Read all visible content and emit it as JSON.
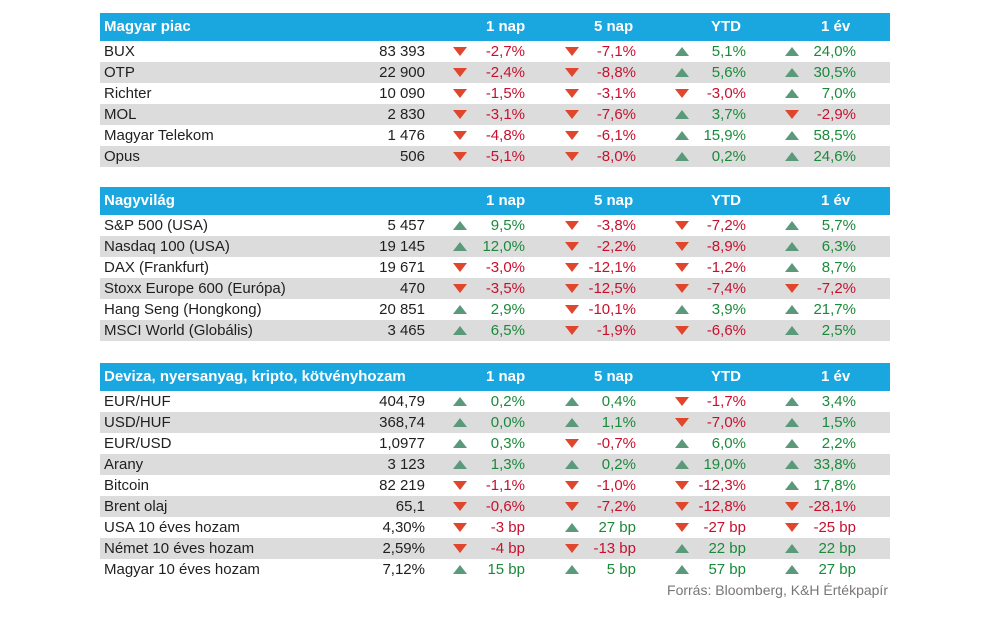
{
  "colors": {
    "header_bg": "#1aa7e0",
    "row_shade": "#dcdcdc",
    "up_arrow": "#5a9a7a",
    "down_arrow": "#e0462b",
    "positive_text": "#1a8a3a",
    "negative_text": "#c8102e"
  },
  "columns": [
    "1 nap",
    "5 nap",
    "YTD",
    "1 év"
  ],
  "sections": [
    {
      "title": "Magyar piac",
      "rows": [
        {
          "name": "BUX",
          "value": "83 393",
          "cells": [
            {
              "t": "-2,7%",
              "d": "down"
            },
            {
              "t": "-7,1%",
              "d": "down"
            },
            {
              "t": "5,1%",
              "d": "up"
            },
            {
              "t": "24,0%",
              "d": "up"
            }
          ]
        },
        {
          "name": "OTP",
          "value": "22 900",
          "cells": [
            {
              "t": "-2,4%",
              "d": "down"
            },
            {
              "t": "-8,8%",
              "d": "down"
            },
            {
              "t": "5,6%",
              "d": "up"
            },
            {
              "t": "30,5%",
              "d": "up"
            }
          ]
        },
        {
          "name": "Richter",
          "value": "10 090",
          "cells": [
            {
              "t": "-1,5%",
              "d": "down"
            },
            {
              "t": "-3,1%",
              "d": "down"
            },
            {
              "t": "-3,0%",
              "d": "down"
            },
            {
              "t": "7,0%",
              "d": "up"
            }
          ]
        },
        {
          "name": "MOL",
          "value": "2 830",
          "cells": [
            {
              "t": "-3,1%",
              "d": "down"
            },
            {
              "t": "-7,6%",
              "d": "down"
            },
            {
              "t": "3,7%",
              "d": "up"
            },
            {
              "t": "-2,9%",
              "d": "down"
            }
          ]
        },
        {
          "name": "Magyar Telekom",
          "value": "1 476",
          "cells": [
            {
              "t": "-4,8%",
              "d": "down"
            },
            {
              "t": "-6,1%",
              "d": "down"
            },
            {
              "t": "15,9%",
              "d": "up"
            },
            {
              "t": "58,5%",
              "d": "up"
            }
          ]
        },
        {
          "name": "Opus",
          "value": "506",
          "cells": [
            {
              "t": "-5,1%",
              "d": "down"
            },
            {
              "t": "-8,0%",
              "d": "down"
            },
            {
              "t": "0,2%",
              "d": "up"
            },
            {
              "t": "24,6%",
              "d": "up"
            }
          ]
        }
      ]
    },
    {
      "title": "Nagyvilág",
      "rows": [
        {
          "name": "S&P 500 (USA)",
          "value": "5 457",
          "cells": [
            {
              "t": "9,5%",
              "d": "up"
            },
            {
              "t": "-3,8%",
              "d": "down"
            },
            {
              "t": "-7,2%",
              "d": "down"
            },
            {
              "t": "5,7%",
              "d": "up"
            }
          ]
        },
        {
          "name": "Nasdaq 100 (USA)",
          "value": "19 145",
          "cells": [
            {
              "t": "12,0%",
              "d": "up"
            },
            {
              "t": "-2,2%",
              "d": "down"
            },
            {
              "t": "-8,9%",
              "d": "down"
            },
            {
              "t": "6,3%",
              "d": "up"
            }
          ]
        },
        {
          "name": "DAX (Frankfurt)",
          "value": "19 671",
          "cells": [
            {
              "t": "-3,0%",
              "d": "down"
            },
            {
              "t": "-12,1%",
              "d": "down"
            },
            {
              "t": "-1,2%",
              "d": "down"
            },
            {
              "t": "8,7%",
              "d": "up"
            }
          ]
        },
        {
          "name": "Stoxx Europe 600 (Európa)",
          "value": "470",
          "cells": [
            {
              "t": "-3,5%",
              "d": "down"
            },
            {
              "t": "-12,5%",
              "d": "down"
            },
            {
              "t": "-7,4%",
              "d": "down"
            },
            {
              "t": "-7,2%",
              "d": "down"
            }
          ]
        },
        {
          "name": "Hang Seng (Hongkong)",
          "value": "20 851",
          "cells": [
            {
              "t": "2,9%",
              "d": "up"
            },
            {
              "t": "-10,1%",
              "d": "down"
            },
            {
              "t": "3,9%",
              "d": "up"
            },
            {
              "t": "21,7%",
              "d": "up"
            }
          ]
        },
        {
          "name": "MSCI World (Globális)",
          "value": "3 465",
          "cells": [
            {
              "t": "6,5%",
              "d": "up"
            },
            {
              "t": "-1,9%",
              "d": "down"
            },
            {
              "t": "-6,6%",
              "d": "down"
            },
            {
              "t": "2,5%",
              "d": "up"
            }
          ]
        }
      ]
    },
    {
      "title": "Deviza, nyersanyag, kripto, kötvényhozam",
      "rows": [
        {
          "name": "EUR/HUF",
          "value": "404,79",
          "cells": [
            {
              "t": "0,2%",
              "d": "up"
            },
            {
              "t": "0,4%",
              "d": "up"
            },
            {
              "t": "-1,7%",
              "d": "down"
            },
            {
              "t": "3,4%",
              "d": "up"
            }
          ]
        },
        {
          "name": "USD/HUF",
          "value": "368,74",
          "cells": [
            {
              "t": "0,0%",
              "d": "up"
            },
            {
              "t": "1,1%",
              "d": "up"
            },
            {
              "t": "-7,0%",
              "d": "down"
            },
            {
              "t": "1,5%",
              "d": "up"
            }
          ]
        },
        {
          "name": "EUR/USD",
          "value": "1,0977",
          "cells": [
            {
              "t": "0,3%",
              "d": "up"
            },
            {
              "t": "-0,7%",
              "d": "down"
            },
            {
              "t": "6,0%",
              "d": "up"
            },
            {
              "t": "2,2%",
              "d": "up"
            }
          ]
        },
        {
          "name": "Arany",
          "value": "3 123",
          "cells": [
            {
              "t": "1,3%",
              "d": "up"
            },
            {
              "t": "0,2%",
              "d": "up"
            },
            {
              "t": "19,0%",
              "d": "up"
            },
            {
              "t": "33,8%",
              "d": "up"
            }
          ]
        },
        {
          "name": "Bitcoin",
          "value": "82 219",
          "cells": [
            {
              "t": "-1,1%",
              "d": "down"
            },
            {
              "t": "-1,0%",
              "d": "down"
            },
            {
              "t": "-12,3%",
              "d": "down"
            },
            {
              "t": "17,8%",
              "d": "up"
            }
          ]
        },
        {
          "name": "Brent olaj",
          "value": "65,1",
          "cells": [
            {
              "t": "-0,6%",
              "d": "down"
            },
            {
              "t": "-7,2%",
              "d": "down"
            },
            {
              "t": "-12,8%",
              "d": "down"
            },
            {
              "t": "-28,1%",
              "d": "down"
            }
          ]
        },
        {
          "name": "USA 10 éves hozam",
          "value": "4,30%",
          "cells": [
            {
              "t": "-3 bp",
              "d": "down"
            },
            {
              "t": "27 bp",
              "d": "up"
            },
            {
              "t": "-27 bp",
              "d": "down"
            },
            {
              "t": "-25 bp",
              "d": "down"
            }
          ]
        },
        {
          "name": "Német 10 éves hozam",
          "value": "2,59%",
          "cells": [
            {
              "t": "-4 bp",
              "d": "down"
            },
            {
              "t": "-13 bp",
              "d": "down"
            },
            {
              "t": "22 bp",
              "d": "up"
            },
            {
              "t": "22 bp",
              "d": "up"
            }
          ]
        },
        {
          "name": "Magyar 10 éves hozam",
          "value": "7,12%",
          "cells": [
            {
              "t": "15 bp",
              "d": "up"
            },
            {
              "t": "5 bp",
              "d": "up"
            },
            {
              "t": "57 bp",
              "d": "up"
            },
            {
              "t": "27 bp",
              "d": "up"
            }
          ]
        }
      ]
    }
  ],
  "source": "Forrás: Bloomberg, K&H Értékpapír"
}
